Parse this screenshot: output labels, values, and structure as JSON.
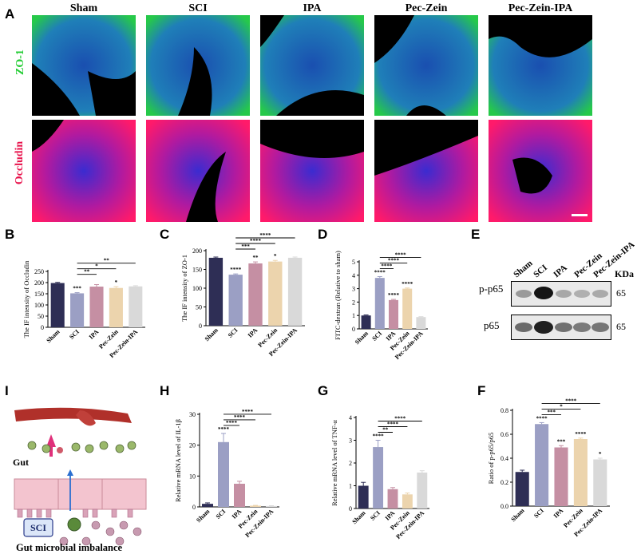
{
  "panel_letters": {
    "A": "A",
    "B": "B",
    "C": "C",
    "D": "D",
    "E": "E",
    "F": "F",
    "G": "G",
    "H": "H",
    "I": "I"
  },
  "groups": [
    "Sham",
    "SCI",
    "IPA",
    "Pec-Zein",
    "Pec-Zein-IPA"
  ],
  "stains": {
    "zo1": "ZO-1",
    "occludin": "Occludin"
  },
  "colors": {
    "zo1": "#22cc33",
    "occludin": "#e8104a",
    "sham": "#2e2e55",
    "sci": "#9b9fc4",
    "ipa": "#c58fa3",
    "pec_zein": "#ecd4ad",
    "pec_zein_ipa": "#d9d9d9"
  },
  "western_blot": {
    "lanes": [
      "Sham",
      "SCI",
      "IPA",
      "Pec-Zein",
      "Pec-Zein-IPA"
    ],
    "kda_header": "KDa",
    "bands": [
      {
        "name": "p-p65",
        "kda": "65"
      },
      {
        "name": "p65",
        "kda": "65"
      }
    ]
  },
  "schematic": {
    "gut_label": "Gut",
    "sci_label": "SCI",
    "caption": "Gut microbial imbalance"
  },
  "chart_data": [
    {
      "panel": "B",
      "type": "bar",
      "categories": [
        "Sham",
        "SCI",
        "IPA",
        "Pec-Zein",
        "Pec-Zein-IPA"
      ],
      "values": [
        198,
        152,
        182,
        176,
        183
      ],
      "errors": [
        3,
        3,
        9,
        6,
        3
      ],
      "ylabel": "The IF intensity of Occludin",
      "ylim": [
        0,
        250
      ],
      "yticks": [
        "0",
        "50",
        "100",
        "150",
        "200",
        "250"
      ],
      "ytick_values": [
        0,
        50,
        100,
        150,
        200,
        250
      ],
      "bar_labels": [
        "",
        "***",
        "",
        "*",
        ""
      ],
      "brackets": [
        {
          "from": 1,
          "to": 2,
          "label": "**"
        },
        {
          "from": 1,
          "to": 3,
          "label": "*"
        },
        {
          "from": 1,
          "to": 4,
          "label": "**"
        }
      ]
    },
    {
      "panel": "C",
      "type": "bar",
      "categories": [
        "Sham",
        "SCI",
        "IPA",
        "Pec-Zein",
        "Pec-Zein-IPA"
      ],
      "values": [
        181,
        136,
        166,
        171,
        181
      ],
      "errors": [
        2,
        2,
        4,
        3,
        2
      ],
      "ylabel": "The IF intensity of ZO-1",
      "ylim": [
        0,
        200
      ],
      "yticks": [
        "0",
        "50",
        "100",
        "150",
        "200"
      ],
      "ytick_values": [
        0,
        50,
        100,
        150,
        200
      ],
      "bar_labels": [
        "",
        "****",
        "**",
        "*",
        ""
      ],
      "brackets": [
        {
          "from": 1,
          "to": 2,
          "label": "***"
        },
        {
          "from": 1,
          "to": 3,
          "label": "****"
        },
        {
          "from": 1,
          "to": 4,
          "label": "****"
        }
      ]
    },
    {
      "panel": "D",
      "type": "bar",
      "categories": [
        "Sham",
        "SCI",
        "IPA",
        "Pec-Zein",
        "Pec-Zein-IPA"
      ],
      "values": [
        1.0,
        3.8,
        2.15,
        3.0,
        0.88
      ],
      "errors": [
        0.04,
        0.1,
        0.05,
        0.05,
        0.03
      ],
      "ylabel": "FITC-dextran (Relative to sham)",
      "ylim": [
        0,
        5
      ],
      "yticks": [
        "0",
        "1",
        "2",
        "3",
        "4",
        "5"
      ],
      "ytick_values": [
        0,
        1,
        2,
        3,
        4,
        5
      ],
      "bar_labels": [
        "",
        "****",
        "****",
        "****",
        ""
      ],
      "brackets": [
        {
          "from": 1,
          "to": 2,
          "label": "****"
        },
        {
          "from": 1,
          "to": 3,
          "label": "****"
        },
        {
          "from": 1,
          "to": 4,
          "label": "****"
        }
      ]
    },
    {
      "panel": "H",
      "type": "bar",
      "categories": [
        "Sham",
        "SCI",
        "IPA",
        "Pec-Zein",
        "Pec-Zein-IPA"
      ],
      "values": [
        1.0,
        21.0,
        7.5,
        0.4,
        0.3
      ],
      "errors": [
        0.3,
        2.8,
        0.8,
        0.1,
        0.1
      ],
      "ylabel": "Relative mRNA level of IL-1β",
      "ylim": [
        0,
        30
      ],
      "yticks": [
        "0",
        "10",
        "20",
        "30"
      ],
      "ytick_values": [
        0,
        10,
        20,
        30
      ],
      "bar_labels": [
        "",
        "****",
        "",
        "",
        ""
      ],
      "brackets": [
        {
          "from": 1,
          "to": 2,
          "label": "****"
        },
        {
          "from": 1,
          "to": 3,
          "label": "****"
        },
        {
          "from": 1,
          "to": 4,
          "label": "****"
        }
      ]
    },
    {
      "panel": "G",
      "type": "bar",
      "categories": [
        "Sham",
        "SCI",
        "IPA",
        "Pec-Zein",
        "Pec-Zein-IPA"
      ],
      "values": [
        1.0,
        2.7,
        0.85,
        0.62,
        1.58
      ],
      "errors": [
        0.15,
        0.3,
        0.07,
        0.06,
        0.08
      ],
      "ylabel": "Relative mRNA level of TNF-α",
      "ylim": [
        0,
        4
      ],
      "yticks": [
        "0",
        "1",
        "2",
        "3",
        "4"
      ],
      "ytick_values": [
        0,
        1,
        2,
        3,
        4
      ],
      "bar_labels": [
        "",
        "****",
        "",
        "",
        ""
      ],
      "brackets": [
        {
          "from": 1,
          "to": 2,
          "label": "**"
        },
        {
          "from": 1,
          "to": 3,
          "label": "****"
        },
        {
          "from": 1,
          "to": 4,
          "label": "****"
        }
      ]
    },
    {
      "panel": "F",
      "type": "bar",
      "categories": [
        "Sham",
        "SCI",
        "IPA",
        "Pec-Zein",
        "Pec-Zein-IPA"
      ],
      "values": [
        0.285,
        0.685,
        0.49,
        0.56,
        0.39
      ],
      "errors": [
        0.015,
        0.012,
        0.015,
        0.008,
        0.01
      ],
      "ylabel": "Ratio of p-p65/p65",
      "ylim": [
        0,
        0.8
      ],
      "yticks": [
        "0.0",
        "0.2",
        "0.4",
        "0.6",
        "0.8"
      ],
      "ytick_values": [
        0,
        0.2,
        0.4,
        0.6,
        0.8
      ],
      "bar_labels": [
        "",
        "****",
        "***",
        "****",
        "*"
      ],
      "brackets": [
        {
          "from": 1,
          "to": 2,
          "label": "***"
        },
        {
          "from": 1,
          "to": 3,
          "label": "*"
        },
        {
          "from": 1,
          "to": 4,
          "label": "****"
        }
      ]
    }
  ]
}
